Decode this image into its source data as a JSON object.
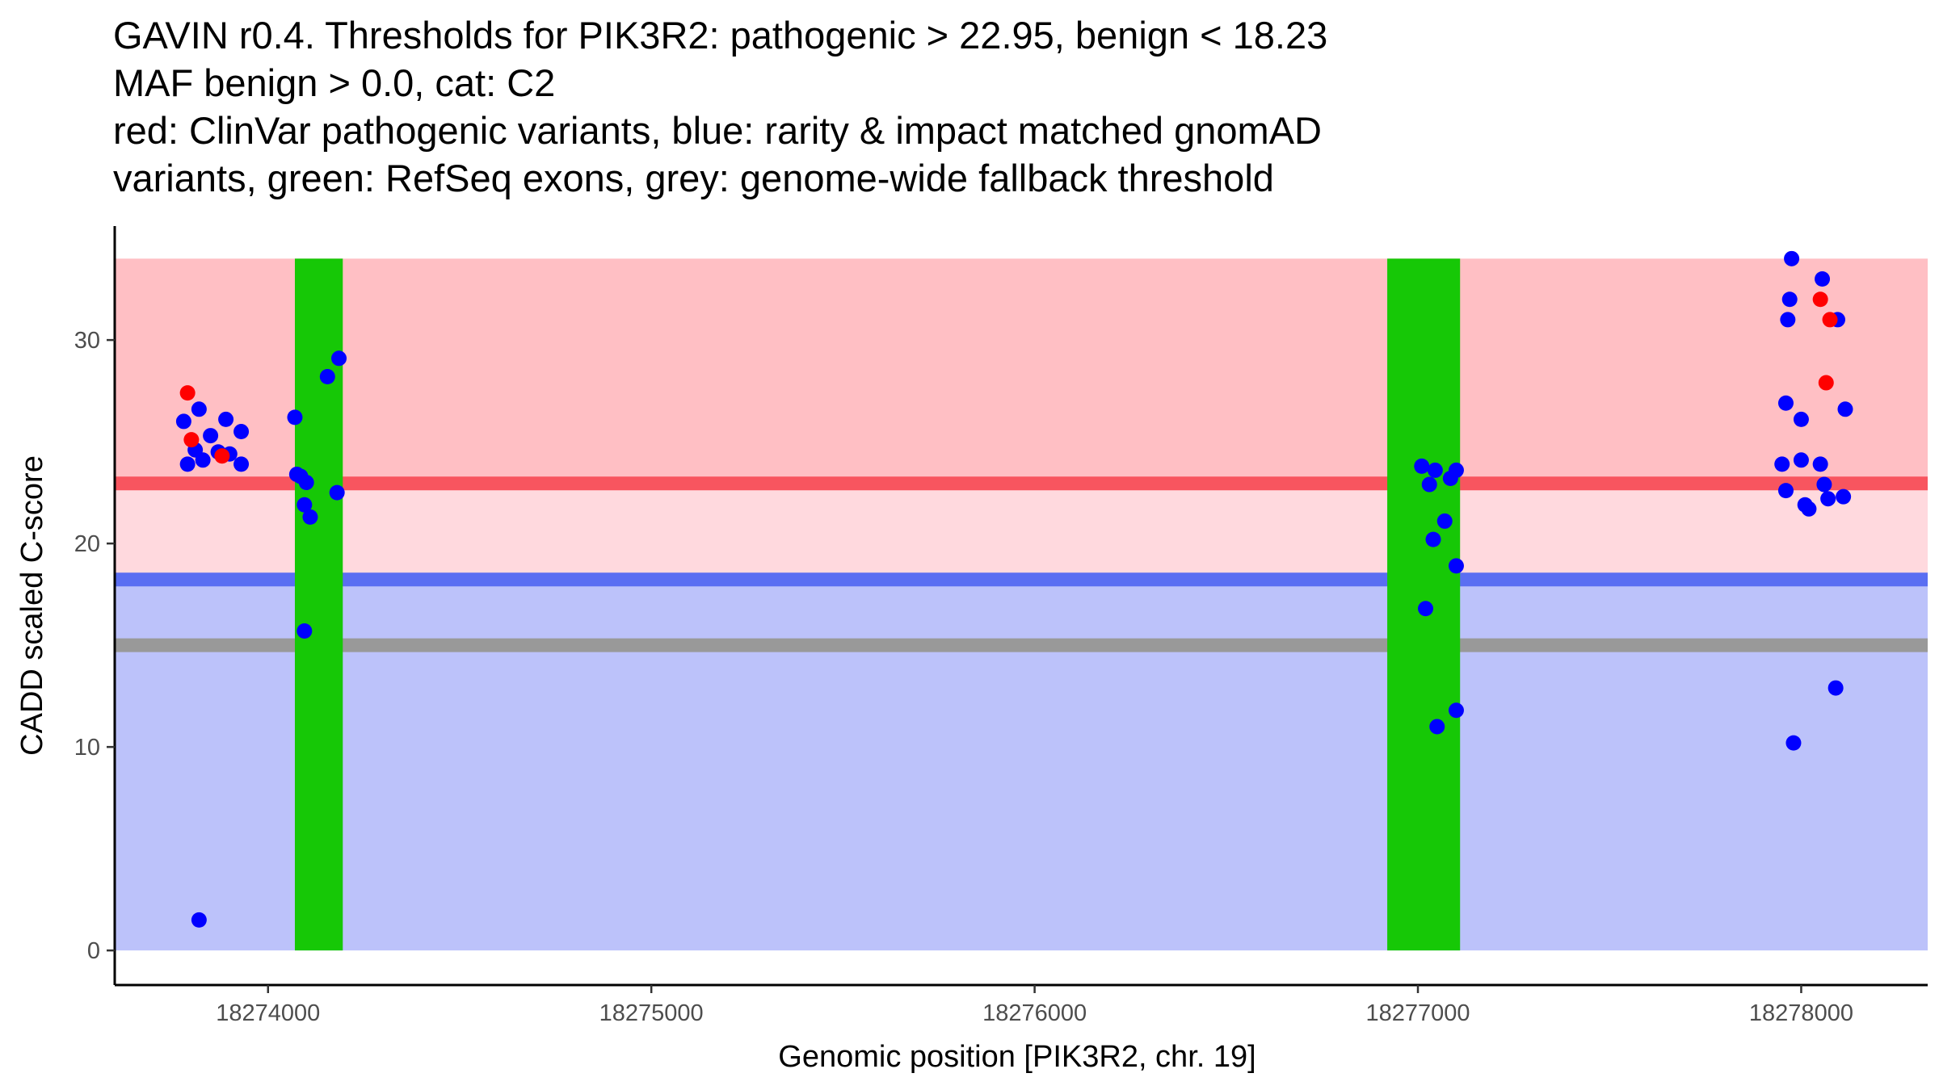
{
  "chart_data": {
    "type": "scatter",
    "title_lines": [
      "GAVIN r0.4. Thresholds for PIK3R2: pathogenic > 22.95, benign < 18.23",
      "MAF benign > 0.0, cat: C2",
      "red: ClinVar pathogenic variants, blue: rarity & impact matched gnomAD",
      "variants, green: RefSeq exons, grey: genome-wide fallback threshold"
    ],
    "xlabel": "Genomic position [PIK3R2, chr. 19]",
    "ylabel": "CADD scaled C-score",
    "xlim": [
      18273600,
      18278330
    ],
    "ylim": [
      -1.7,
      35.6
    ],
    "x_ticks": [
      18274000,
      18275000,
      18276000,
      18277000,
      18278000
    ],
    "x_tick_labels": [
      "18274000",
      "18275000",
      "18276000",
      "18277000",
      "18278000"
    ],
    "y_ticks": [
      0,
      10,
      20,
      30
    ],
    "y_tick_labels": [
      "0",
      "10",
      "20",
      "30"
    ],
    "colors": {
      "pathogenic_region": "#ffbfc4",
      "vus_region": "#ffd9de",
      "benign_region": "#bcc2fa",
      "pathogenic_line": "#f8555f",
      "benign_line": "#5a6ef2",
      "fallback_line": "#999999",
      "exon": "#16c806",
      "clinvar_point": "#ff0000",
      "gnomad_point": "#0000ff"
    },
    "regions": [
      {
        "name": "pathogenic",
        "y_from": 22.95,
        "y_to": 34.0
      },
      {
        "name": "vus",
        "y_from": 18.23,
        "y_to": 22.95
      },
      {
        "name": "benign",
        "y_from": 0,
        "y_to": 18.23
      }
    ],
    "threshold_lines": [
      {
        "name": "pathogenic",
        "y": 22.95
      },
      {
        "name": "benign",
        "y": 18.23
      },
      {
        "name": "fallback",
        "y": 15.0
      }
    ],
    "region_x_range": [
      18273600,
      18278330
    ],
    "exons": [
      {
        "x_start": 18274070,
        "x_end": 18274195
      },
      {
        "x_start": 18276920,
        "x_end": 18277110
      }
    ],
    "series": [
      {
        "name": "ClinVar pathogenic",
        "points": [
          [
            18273790,
            27.4
          ],
          [
            18273800,
            25.1
          ],
          [
            18273880,
            24.3
          ],
          [
            18278050,
            32.0
          ],
          [
            18278065,
            27.9
          ],
          [
            18278075,
            31.0
          ]
        ]
      },
      {
        "name": "gnomAD matched",
        "points": [
          [
            18273780,
            26.0
          ],
          [
            18273790,
            23.9
          ],
          [
            18273810,
            24.6
          ],
          [
            18273820,
            26.6
          ],
          [
            18273830,
            24.1
          ],
          [
            18273820,
            1.5
          ],
          [
            18273850,
            25.3
          ],
          [
            18273870,
            24.5
          ],
          [
            18273890,
            26.1
          ],
          [
            18273900,
            24.4
          ],
          [
            18273930,
            25.5
          ],
          [
            18273930,
            23.9
          ],
          [
            18274070,
            26.2
          ],
          [
            18274075,
            23.4
          ],
          [
            18274085,
            23.3
          ],
          [
            18274095,
            21.9
          ],
          [
            18274100,
            23.0
          ],
          [
            18274110,
            21.3
          ],
          [
            18274095,
            15.7
          ],
          [
            18274155,
            28.2
          ],
          [
            18274180,
            22.5
          ],
          [
            18274185,
            29.1
          ],
          [
            18277010,
            23.8
          ],
          [
            18277020,
            16.8
          ],
          [
            18277030,
            22.9
          ],
          [
            18277040,
            20.2
          ],
          [
            18277045,
            23.6
          ],
          [
            18277050,
            11.0
          ],
          [
            18277070,
            21.1
          ],
          [
            18277085,
            23.2
          ],
          [
            18277100,
            23.6
          ],
          [
            18277100,
            18.9
          ],
          [
            18277100,
            11.8
          ],
          [
            18277950,
            23.9
          ],
          [
            18277960,
            26.9
          ],
          [
            18277960,
            22.6
          ],
          [
            18277965,
            31.0
          ],
          [
            18277970,
            32.0
          ],
          [
            18277975,
            34.0
          ],
          [
            18277980,
            10.2
          ],
          [
            18278000,
            24.1
          ],
          [
            18278000,
            26.1
          ],
          [
            18278010,
            21.9
          ],
          [
            18278020,
            21.7
          ],
          [
            18278050,
            23.9
          ],
          [
            18278055,
            33.0
          ],
          [
            18278060,
            22.9
          ],
          [
            18278070,
            22.2
          ],
          [
            18278090,
            12.9
          ],
          [
            18278095,
            31.0
          ],
          [
            18278110,
            22.3
          ],
          [
            18278115,
            26.6
          ]
        ]
      }
    ]
  }
}
